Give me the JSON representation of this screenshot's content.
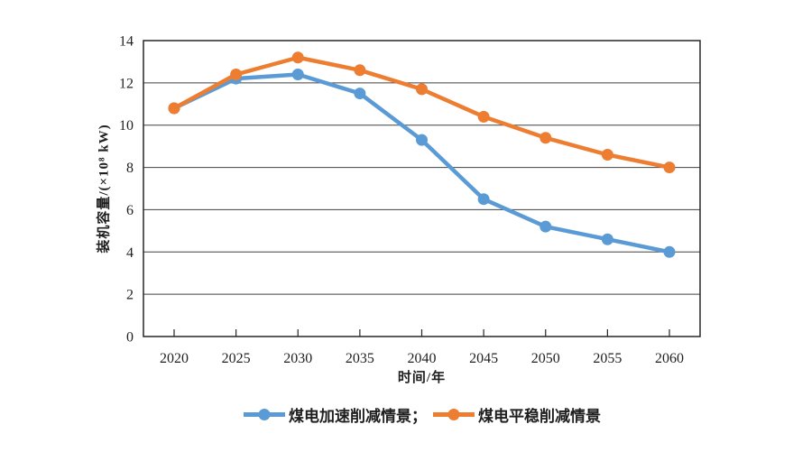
{
  "colors": {
    "series_blue": "#5B9BD5",
    "series_orange": "#ED7D31",
    "axis_border": "#262626",
    "gridline": "#404040",
    "text": "#1f1f1f",
    "background": "#ffffff"
  },
  "chart_data": {
    "type": "line",
    "x": [
      2020,
      2025,
      2030,
      2035,
      2040,
      2045,
      2050,
      2055,
      2060
    ],
    "xtick_labels": [
      "2020",
      "2025",
      "2030",
      "2035",
      "2040",
      "2045",
      "2050",
      "2055",
      "2060"
    ],
    "series": [
      {
        "name": "煤电加速削减情景",
        "legend_label": "煤电加速削减情景；",
        "color": "#5B9BD5",
        "values": [
          10.8,
          12.2,
          12.4,
          11.5,
          9.3,
          6.5,
          5.2,
          4.6,
          4.0
        ]
      },
      {
        "name": "煤电平稳削减情景",
        "legend_label": "煤电平稳削减情景",
        "color": "#ED7D31",
        "values": [
          10.8,
          12.4,
          13.2,
          12.6,
          11.7,
          10.4,
          9.4,
          8.6,
          8.0
        ]
      }
    ],
    "title": "",
    "xlabel": "时间/年",
    "ylabel": "装机容量/(×10⁸ kW)",
    "ylim": [
      0,
      14
    ],
    "yticks": [
      0,
      2,
      4,
      6,
      8,
      10,
      12,
      14
    ],
    "grid": "horizontal-only",
    "legend_position": "bottom",
    "marker": "circle"
  }
}
